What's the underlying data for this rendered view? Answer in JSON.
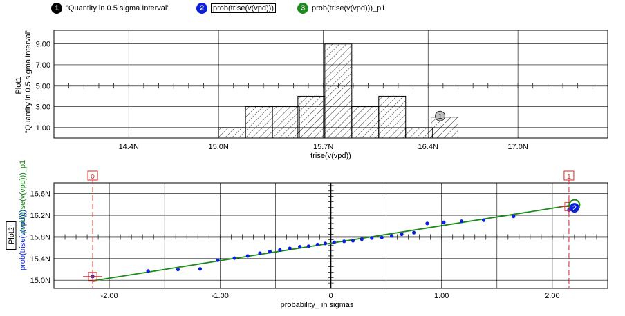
{
  "legend": [
    {
      "marker": "1",
      "label": "\"Quantity in 0.5 sigma Interval\"",
      "color": "#000000",
      "boxed": false
    },
    {
      "marker": "2",
      "label": "prob(trise(v(vpd)))",
      "color": "#0a1fe0",
      "boxed": true
    },
    {
      "marker": "3",
      "label": "prob(trise(v(vpd)))_p1",
      "color": "#1a8a1a",
      "boxed": false
    }
  ],
  "chart_data": [
    {
      "type": "bar",
      "plot_name": "Plot1",
      "ylabel": "\"Quantity in 0.5 sigma Interval\"",
      "xlabel": "trise(v(vpd))",
      "x_unit": "ns",
      "xlim": [
        13.9,
        17.6
      ],
      "ylim": [
        0,
        10.3
      ],
      "x_ticks": [
        14.4,
        15.0,
        15.7,
        16.4,
        17.0
      ],
      "x_tick_labels": [
        "14.4N",
        "15.0N",
        "15.7N",
        "16.4N",
        "17.0N"
      ],
      "y_ticks": [
        1,
        3,
        5,
        7,
        9
      ],
      "y_tick_labels": [
        "1.00",
        "3.00",
        "5.00",
        "7.00",
        "9.00"
      ],
      "bar_width": 0.18,
      "bins": [
        {
          "x": 15.0,
          "value": 1
        },
        {
          "x": 15.18,
          "value": 3
        },
        {
          "x": 15.36,
          "value": 3
        },
        {
          "x": 15.53,
          "value": 4
        },
        {
          "x": 15.71,
          "value": 9
        },
        {
          "x": 15.89,
          "value": 3
        },
        {
          "x": 16.07,
          "value": 4
        },
        {
          "x": 16.25,
          "value": 1
        },
        {
          "x": 16.42,
          "value": 2
        }
      ],
      "hatch": "diagonal",
      "marker": {
        "label": "1",
        "x": 16.48,
        "y": 2.1
      },
      "grid": true
    },
    {
      "type": "scatter",
      "plot_name": "Plot2",
      "xlabel": "probability_ in sigmas",
      "ylabel_left": "prob(trise(v(vpd)))",
      "ylabel_right": "prob(trise(v(vpd)))_p1",
      "ylabel_left_color": "#0a1fe0",
      "ylabel_right_color": "#1a8a1a",
      "xlim": [
        -2.5,
        2.5
      ],
      "ylim": [
        14.85,
        16.8
      ],
      "x_ticks": [
        -2.0,
        -1.0,
        0,
        1.0,
        2.0
      ],
      "x_tick_labels": [
        "-2.00",
        "-1.00",
        "0",
        "1.00",
        "2.00"
      ],
      "y_ticks": [
        15.0,
        15.4,
        15.8,
        16.2,
        16.6
      ],
      "y_tick_labels": [
        "15.0N",
        "15.4N",
        "15.8N",
        "16.2N",
        "16.6N"
      ],
      "series": [
        {
          "color": "#0a1fe0",
          "points": [
            [
              -2.15,
              15.07
            ],
            [
              -1.65,
              15.17
            ],
            [
              -1.38,
              15.2
            ],
            [
              -1.18,
              15.21
            ],
            [
              -1.02,
              15.37
            ],
            [
              -0.87,
              15.41
            ],
            [
              -0.75,
              15.45
            ],
            [
              -0.64,
              15.5
            ],
            [
              -0.55,
              15.53
            ],
            [
              -0.46,
              15.56
            ],
            [
              -0.37,
              15.59
            ],
            [
              -0.28,
              15.62
            ],
            [
              -0.2,
              15.63
            ],
            [
              -0.12,
              15.66
            ],
            [
              -0.05,
              15.68
            ],
            [
              0.03,
              15.7
            ],
            [
              0.12,
              15.72
            ],
            [
              0.2,
              15.73
            ],
            [
              0.28,
              15.76
            ],
            [
              0.37,
              15.78
            ],
            [
              0.46,
              15.79
            ],
            [
              0.55,
              15.82
            ],
            [
              0.64,
              15.85
            ],
            [
              0.75,
              15.88
            ],
            [
              0.87,
              16.05
            ],
            [
              1.02,
              16.07
            ],
            [
              1.18,
              16.09
            ],
            [
              1.38,
              16.11
            ],
            [
              1.65,
              16.18
            ],
            [
              2.15,
              16.3
            ]
          ]
        },
        {
          "color": "#1a8a1a",
          "line": [
            [
              -2.15,
              14.99
            ],
            [
              2.15,
              16.38
            ]
          ]
        }
      ],
      "cursors": [
        {
          "label": "0",
          "x": -2.15,
          "y": 15.07
        },
        {
          "label": "1",
          "x": 2.15,
          "y": 16.36
        }
      ],
      "end_markers": [
        {
          "label": "2",
          "x": 2.2,
          "y": 16.34,
          "color": "#0a1fe0"
        },
        {
          "label": "",
          "x": 2.2,
          "y": 16.39,
          "color": "#1a8a1a"
        }
      ],
      "grid": true
    }
  ]
}
